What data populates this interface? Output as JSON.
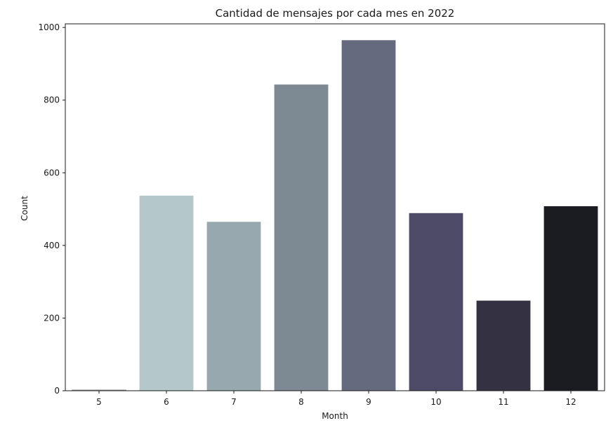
{
  "chart_data": {
    "type": "bar",
    "title": "Cantidad de mensajes por cada mes en 2022",
    "xlabel": "Month",
    "ylabel": "Count",
    "categories": [
      "5",
      "6",
      "7",
      "8",
      "9",
      "10",
      "11",
      "12"
    ],
    "values": [
      2,
      537,
      465,
      843,
      965,
      489,
      248,
      508
    ],
    "ylim": [
      0,
      1010
    ],
    "yticks": [
      0,
      200,
      400,
      600,
      800,
      1000
    ],
    "colors": [
      "#c9dede",
      "#b4c8ca",
      "#97a8ae",
      "#7d8a94",
      "#656a7e",
      "#4c4a66",
      "#333142",
      "#1b1c22"
    ],
    "grid": false,
    "legend": "none"
  }
}
